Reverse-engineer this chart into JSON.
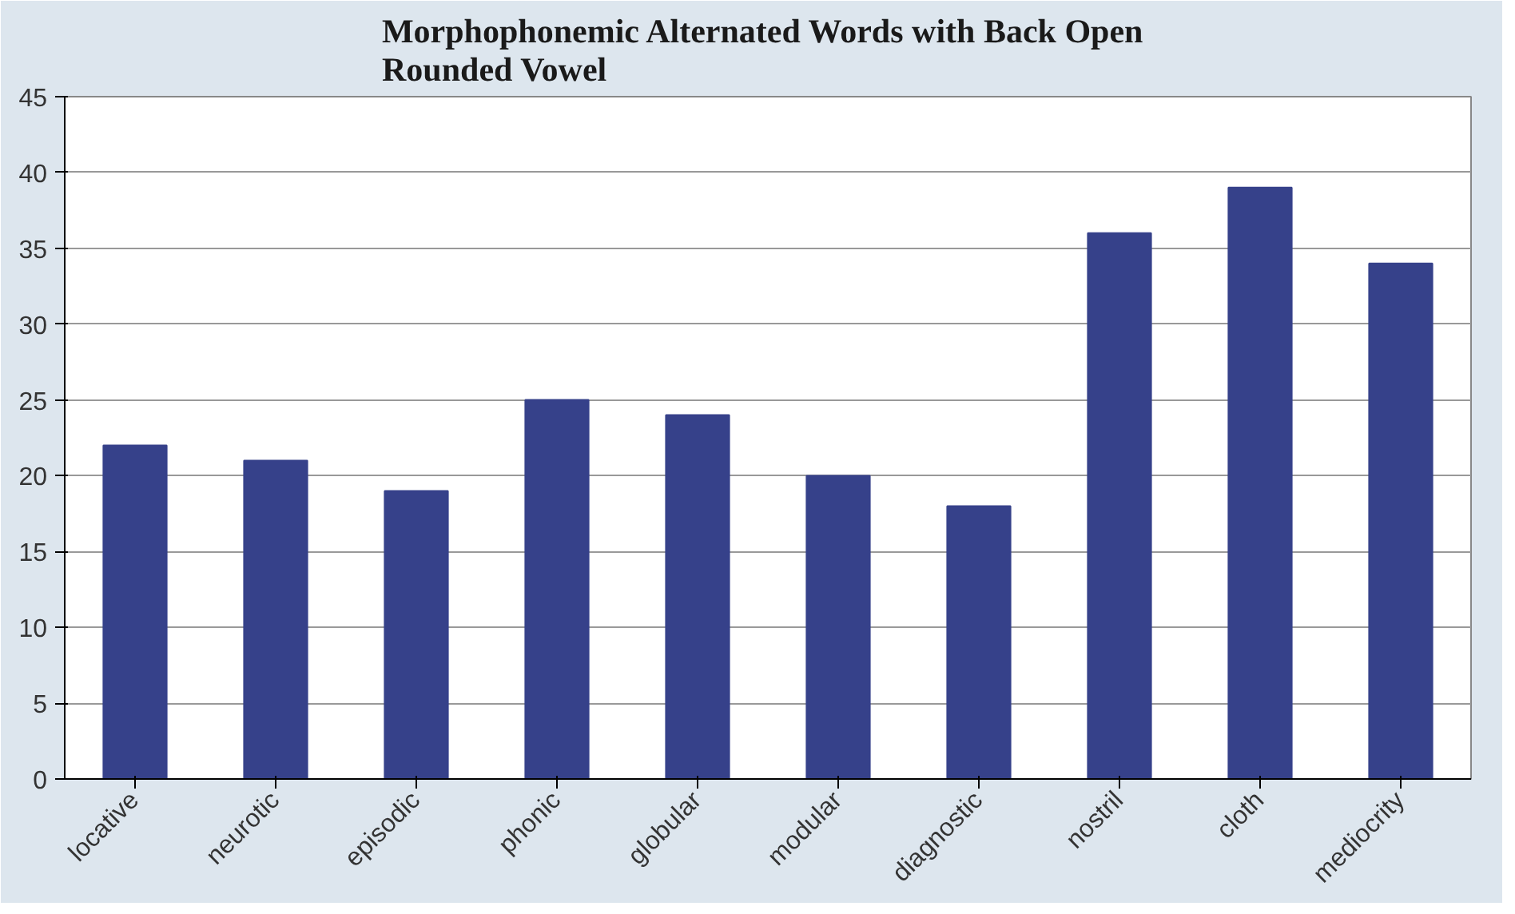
{
  "chart_data": {
    "type": "bar",
    "title": "Morphophonemic  Alternated Words with Back Open\nRounded Vowel",
    "categories": [
      "locative",
      "neurotic",
      "episodic",
      "phonic",
      "globular",
      "modular",
      "diagnostic",
      "nostril",
      "cloth",
      "mediocrity"
    ],
    "values": [
      22,
      21,
      19,
      25,
      24,
      20,
      18,
      36,
      39,
      34
    ],
    "color": "#36418a",
    "ylim": [
      0,
      45
    ],
    "yticks": [
      0,
      5,
      10,
      15,
      20,
      25,
      30,
      35,
      40,
      45
    ],
    "grid": "y"
  }
}
